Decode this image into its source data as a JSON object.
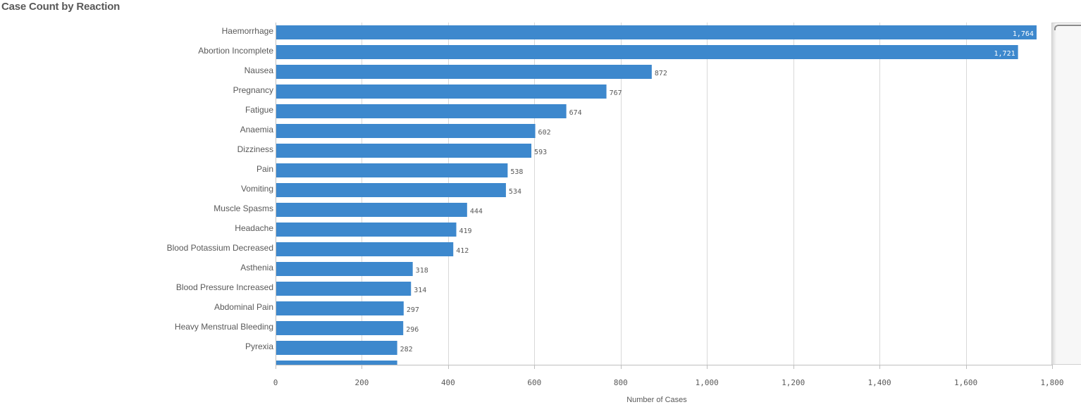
{
  "title": "Case Count by Reaction",
  "colors": {
    "bar": "#3d88cd",
    "grid": "#d9d9d9",
    "text": "#595959"
  },
  "chart_data": {
    "type": "bar",
    "orientation": "horizontal",
    "title": "Case Count by Reaction",
    "xlabel": "Number of Cases",
    "ylabel": "",
    "xlim": [
      0,
      1800
    ],
    "grid": true,
    "ticks": [
      "0",
      "200",
      "400",
      "600",
      "800",
      "1,000",
      "1,200",
      "1,400",
      "1,600",
      "1,800"
    ],
    "tick_values": [
      0,
      200,
      400,
      600,
      800,
      1000,
      1200,
      1400,
      1600,
      1800
    ],
    "categories": [
      "Haemorrhage",
      "Abortion Incomplete",
      "Nausea",
      "Pregnancy",
      "Fatigue",
      "Anaemia",
      "Dizziness",
      "Pain",
      "Vomiting",
      "Muscle Spasms",
      "Headache",
      "Blood Potassium Decreased",
      "Asthenia",
      "Blood Pressure Increased",
      "Abdominal Pain",
      "Heavy Menstrual Bleeding",
      "Pyrexia"
    ],
    "values": [
      1764,
      1721,
      872,
      767,
      674,
      602,
      593,
      538,
      534,
      444,
      419,
      412,
      318,
      314,
      297,
      296,
      282
    ],
    "value_labels": [
      "1,764",
      "1,721",
      "872",
      "767",
      "674",
      "602",
      "593",
      "538",
      "534",
      "444",
      "419",
      "412",
      "318",
      "314",
      "297",
      "296",
      "282"
    ],
    "partial_next_value": 282
  }
}
